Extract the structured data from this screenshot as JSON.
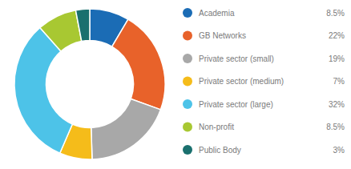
{
  "chart_data": {
    "type": "pie",
    "categories": [
      "Academia",
      "GB Networks",
      "Private sector (small)",
      "Private sector (medium)",
      "Private sector (large)",
      "Non-profit",
      "Public Body"
    ],
    "values": [
      8.5,
      22,
      19,
      7,
      32,
      8.5,
      3
    ],
    "value_labels": [
      "8.5%",
      "22%",
      "19%",
      "7%",
      "32%",
      "8.5%",
      "3%"
    ],
    "colors": [
      "#1b6cb5",
      "#e8622a",
      "#a8a8a8",
      "#f5bc1a",
      "#4dc3e8",
      "#a8c832",
      "#1a706e"
    ],
    "legend": "right"
  }
}
